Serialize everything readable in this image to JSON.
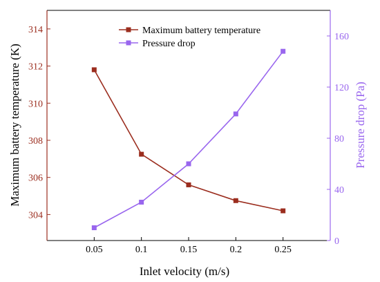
{
  "chart_data": {
    "type": "line",
    "x": [
      0.05,
      0.1,
      0.15,
      0.2,
      0.25
    ],
    "xticks": [
      "0.05",
      "0.1",
      "0.15",
      "0.2",
      "0.25"
    ],
    "xlabel": "Inlet velocity (m/s)",
    "xlim": [
      0,
      0.3
    ],
    "ylabel_left": "Maximum battery temperature (K)",
    "ylim_left": [
      302.6,
      315
    ],
    "yticks_left": [
      304,
      306,
      308,
      310,
      312,
      314
    ],
    "ylabel_right": "Pressure drop (Pa)",
    "ylim_right": [
      0,
      180
    ],
    "yticks_right": [
      0,
      40,
      80,
      120,
      160
    ],
    "legend_position": "top-center",
    "grid": false,
    "series": [
      {
        "name": "Maximum battery temperature",
        "axis": "left",
        "color": "#9b2d1e",
        "marker": "square",
        "values": [
          311.8,
          307.25,
          305.6,
          304.75,
          304.2
        ]
      },
      {
        "name": "Pressure drop",
        "axis": "right",
        "color": "#9966ee",
        "marker": "square",
        "values": [
          10,
          30,
          60,
          99,
          148
        ]
      }
    ]
  }
}
